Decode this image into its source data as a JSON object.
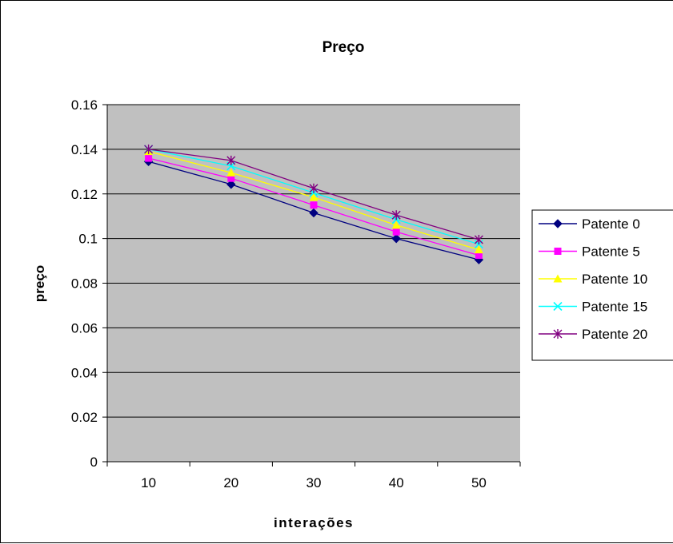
{
  "chart_data": {
    "type": "line",
    "title": "Preço",
    "xlabel": "interações",
    "ylabel": "preço",
    "categories": [
      "10",
      "20",
      "30",
      "40",
      "50"
    ],
    "ylim": [
      0,
      0.16
    ],
    "yticks": [
      "0",
      "0.02",
      "0.04",
      "0.06",
      "0.08",
      "0.1",
      "0.12",
      "0.14",
      "0.16"
    ],
    "grid": true,
    "plot_background": "#c0c0c0",
    "legend_position": "right",
    "series": [
      {
        "name": "Patente 0",
        "color": "#000080",
        "marker": "diamond",
        "values": [
          0.1345,
          0.1243,
          0.1115,
          0.1,
          0.0905
        ]
      },
      {
        "name": "Patente 5",
        "color": "#ff00ff",
        "marker": "square",
        "values": [
          0.136,
          0.127,
          0.115,
          0.103,
          0.0925
        ]
      },
      {
        "name": "Patente 10",
        "color": "#ffff00",
        "marker": "triangle",
        "values": [
          0.139,
          0.1295,
          0.1185,
          0.106,
          0.095
        ]
      },
      {
        "name": "Patente 15",
        "color": "#00ffff",
        "marker": "x",
        "values": [
          0.14,
          0.1325,
          0.1205,
          0.1085,
          0.0975
        ]
      },
      {
        "name": "Patente 20",
        "color": "#800080",
        "marker": "star",
        "values": [
          0.14,
          0.135,
          0.1225,
          0.1105,
          0.0995
        ]
      }
    ]
  }
}
